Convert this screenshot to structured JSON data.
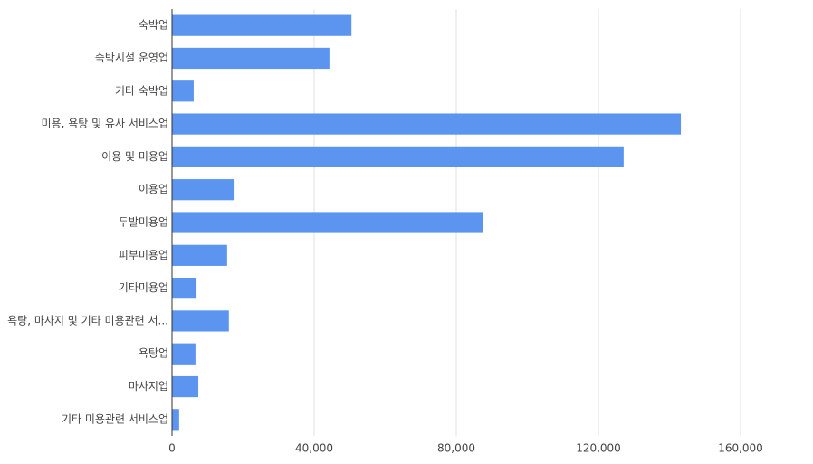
{
  "chart_data": {
    "type": "hbar",
    "categories": [
      "숙박업",
      "숙박시설 운영업",
      "기타 숙박업",
      "미용, 욕탕 및 유사 서비스업",
      "이용 및 미용업",
      "이용업",
      "두발미용업",
      "피부미용업",
      "기타미용업",
      "욕탕, 마사지 및 기타 미용관련 서...",
      "욕탕업",
      "마사지업",
      "기타 미용관련 서비스업"
    ],
    "values": [
      50500,
      44300,
      6100,
      143200,
      127100,
      17600,
      87400,
      15500,
      6900,
      16000,
      6600,
      7400,
      2000
    ],
    "color": "#5b95f0",
    "xlim": [
      0,
      160000
    ],
    "xticks": [
      0,
      {
        "value": 40000,
        "label": "40,000"
      },
      {
        "value": 80000,
        "label": "80,000"
      },
      {
        "value": 120000,
        "label": "120,000"
      },
      {
        "value": 160000,
        "label": "160,000"
      }
    ],
    "grid": true
  }
}
